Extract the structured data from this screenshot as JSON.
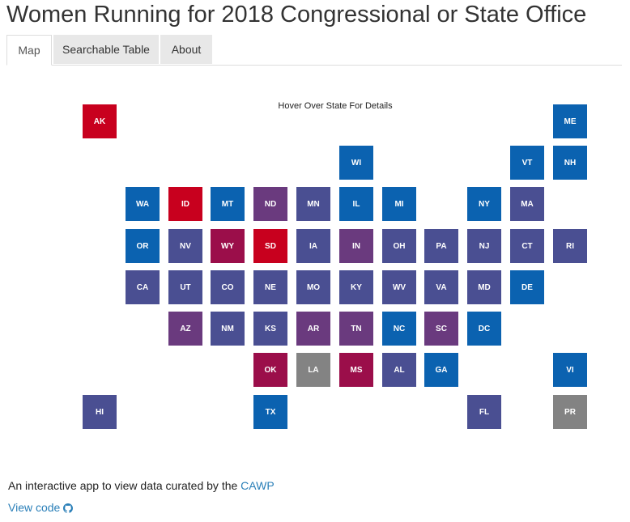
{
  "title": "Women Running for 2018 Congressional or State Office",
  "tabs": [
    {
      "label": "Map",
      "active": true
    },
    {
      "label": "Searchable Table",
      "active": false
    },
    {
      "label": "About",
      "active": false
    }
  ],
  "map": {
    "hint": "Hover Over State For Details",
    "colors": {
      "red": "#c8001e",
      "crimson": "#9b0e4a",
      "purple": "#6a3a7e",
      "indigo": "#4a4f92",
      "blue": "#0b62b0",
      "gray": "#838383"
    },
    "states": [
      {
        "abbr": "AK",
        "col": 0,
        "row": 0,
        "color": "red"
      },
      {
        "abbr": "ME",
        "col": 11,
        "row": 0,
        "color": "blue"
      },
      {
        "abbr": "WI",
        "col": 6,
        "row": 1,
        "color": "blue"
      },
      {
        "abbr": "VT",
        "col": 10,
        "row": 1,
        "color": "blue"
      },
      {
        "abbr": "NH",
        "col": 11,
        "row": 1,
        "color": "blue"
      },
      {
        "abbr": "WA",
        "col": 1,
        "row": 2,
        "color": "blue"
      },
      {
        "abbr": "ID",
        "col": 2,
        "row": 2,
        "color": "red"
      },
      {
        "abbr": "MT",
        "col": 3,
        "row": 2,
        "color": "blue"
      },
      {
        "abbr": "ND",
        "col": 4,
        "row": 2,
        "color": "purple"
      },
      {
        "abbr": "MN",
        "col": 5,
        "row": 2,
        "color": "indigo"
      },
      {
        "abbr": "IL",
        "col": 6,
        "row": 2,
        "color": "blue"
      },
      {
        "abbr": "MI",
        "col": 7,
        "row": 2,
        "color": "blue"
      },
      {
        "abbr": "NY",
        "col": 9,
        "row": 2,
        "color": "blue"
      },
      {
        "abbr": "MA",
        "col": 10,
        "row": 2,
        "color": "indigo"
      },
      {
        "abbr": "OR",
        "col": 1,
        "row": 3,
        "color": "blue"
      },
      {
        "abbr": "NV",
        "col": 2,
        "row": 3,
        "color": "indigo"
      },
      {
        "abbr": "WY",
        "col": 3,
        "row": 3,
        "color": "crimson"
      },
      {
        "abbr": "SD",
        "col": 4,
        "row": 3,
        "color": "red"
      },
      {
        "abbr": "IA",
        "col": 5,
        "row": 3,
        "color": "indigo"
      },
      {
        "abbr": "IN",
        "col": 6,
        "row": 3,
        "color": "purple"
      },
      {
        "abbr": "OH",
        "col": 7,
        "row": 3,
        "color": "indigo"
      },
      {
        "abbr": "PA",
        "col": 8,
        "row": 3,
        "color": "indigo"
      },
      {
        "abbr": "NJ",
        "col": 9,
        "row": 3,
        "color": "indigo"
      },
      {
        "abbr": "CT",
        "col": 10,
        "row": 3,
        "color": "indigo"
      },
      {
        "abbr": "RI",
        "col": 11,
        "row": 3,
        "color": "indigo"
      },
      {
        "abbr": "CA",
        "col": 1,
        "row": 4,
        "color": "indigo"
      },
      {
        "abbr": "UT",
        "col": 2,
        "row": 4,
        "color": "indigo"
      },
      {
        "abbr": "CO",
        "col": 3,
        "row": 4,
        "color": "indigo"
      },
      {
        "abbr": "NE",
        "col": 4,
        "row": 4,
        "color": "indigo"
      },
      {
        "abbr": "MO",
        "col": 5,
        "row": 4,
        "color": "indigo"
      },
      {
        "abbr": "KY",
        "col": 6,
        "row": 4,
        "color": "indigo"
      },
      {
        "abbr": "WV",
        "col": 7,
        "row": 4,
        "color": "indigo"
      },
      {
        "abbr": "VA",
        "col": 8,
        "row": 4,
        "color": "indigo"
      },
      {
        "abbr": "MD",
        "col": 9,
        "row": 4,
        "color": "indigo"
      },
      {
        "abbr": "DE",
        "col": 10,
        "row": 4,
        "color": "blue"
      },
      {
        "abbr": "AZ",
        "col": 2,
        "row": 5,
        "color": "purple"
      },
      {
        "abbr": "NM",
        "col": 3,
        "row": 5,
        "color": "indigo"
      },
      {
        "abbr": "KS",
        "col": 4,
        "row": 5,
        "color": "indigo"
      },
      {
        "abbr": "AR",
        "col": 5,
        "row": 5,
        "color": "purple"
      },
      {
        "abbr": "TN",
        "col": 6,
        "row": 5,
        "color": "purple"
      },
      {
        "abbr": "NC",
        "col": 7,
        "row": 5,
        "color": "blue"
      },
      {
        "abbr": "SC",
        "col": 8,
        "row": 5,
        "color": "purple"
      },
      {
        "abbr": "DC",
        "col": 9,
        "row": 5,
        "color": "blue"
      },
      {
        "abbr": "OK",
        "col": 4,
        "row": 6,
        "color": "crimson"
      },
      {
        "abbr": "LA",
        "col": 5,
        "row": 6,
        "color": "gray"
      },
      {
        "abbr": "MS",
        "col": 6,
        "row": 6,
        "color": "crimson"
      },
      {
        "abbr": "AL",
        "col": 7,
        "row": 6,
        "color": "indigo"
      },
      {
        "abbr": "GA",
        "col": 8,
        "row": 6,
        "color": "blue"
      },
      {
        "abbr": "VI",
        "col": 11,
        "row": 6,
        "color": "blue"
      },
      {
        "abbr": "HI",
        "col": 0,
        "row": 7,
        "color": "indigo"
      },
      {
        "abbr": "TX",
        "col": 4,
        "row": 7,
        "color": "blue"
      },
      {
        "abbr": "FL",
        "col": 9,
        "row": 7,
        "color": "indigo"
      },
      {
        "abbr": "PR",
        "col": 11,
        "row": 7,
        "color": "gray"
      }
    ]
  },
  "footer": {
    "text": "An interactive app to view data curated by the ",
    "link_label": "CAWP",
    "view_code_label": "View code",
    "view_code_icon": "github-icon"
  }
}
